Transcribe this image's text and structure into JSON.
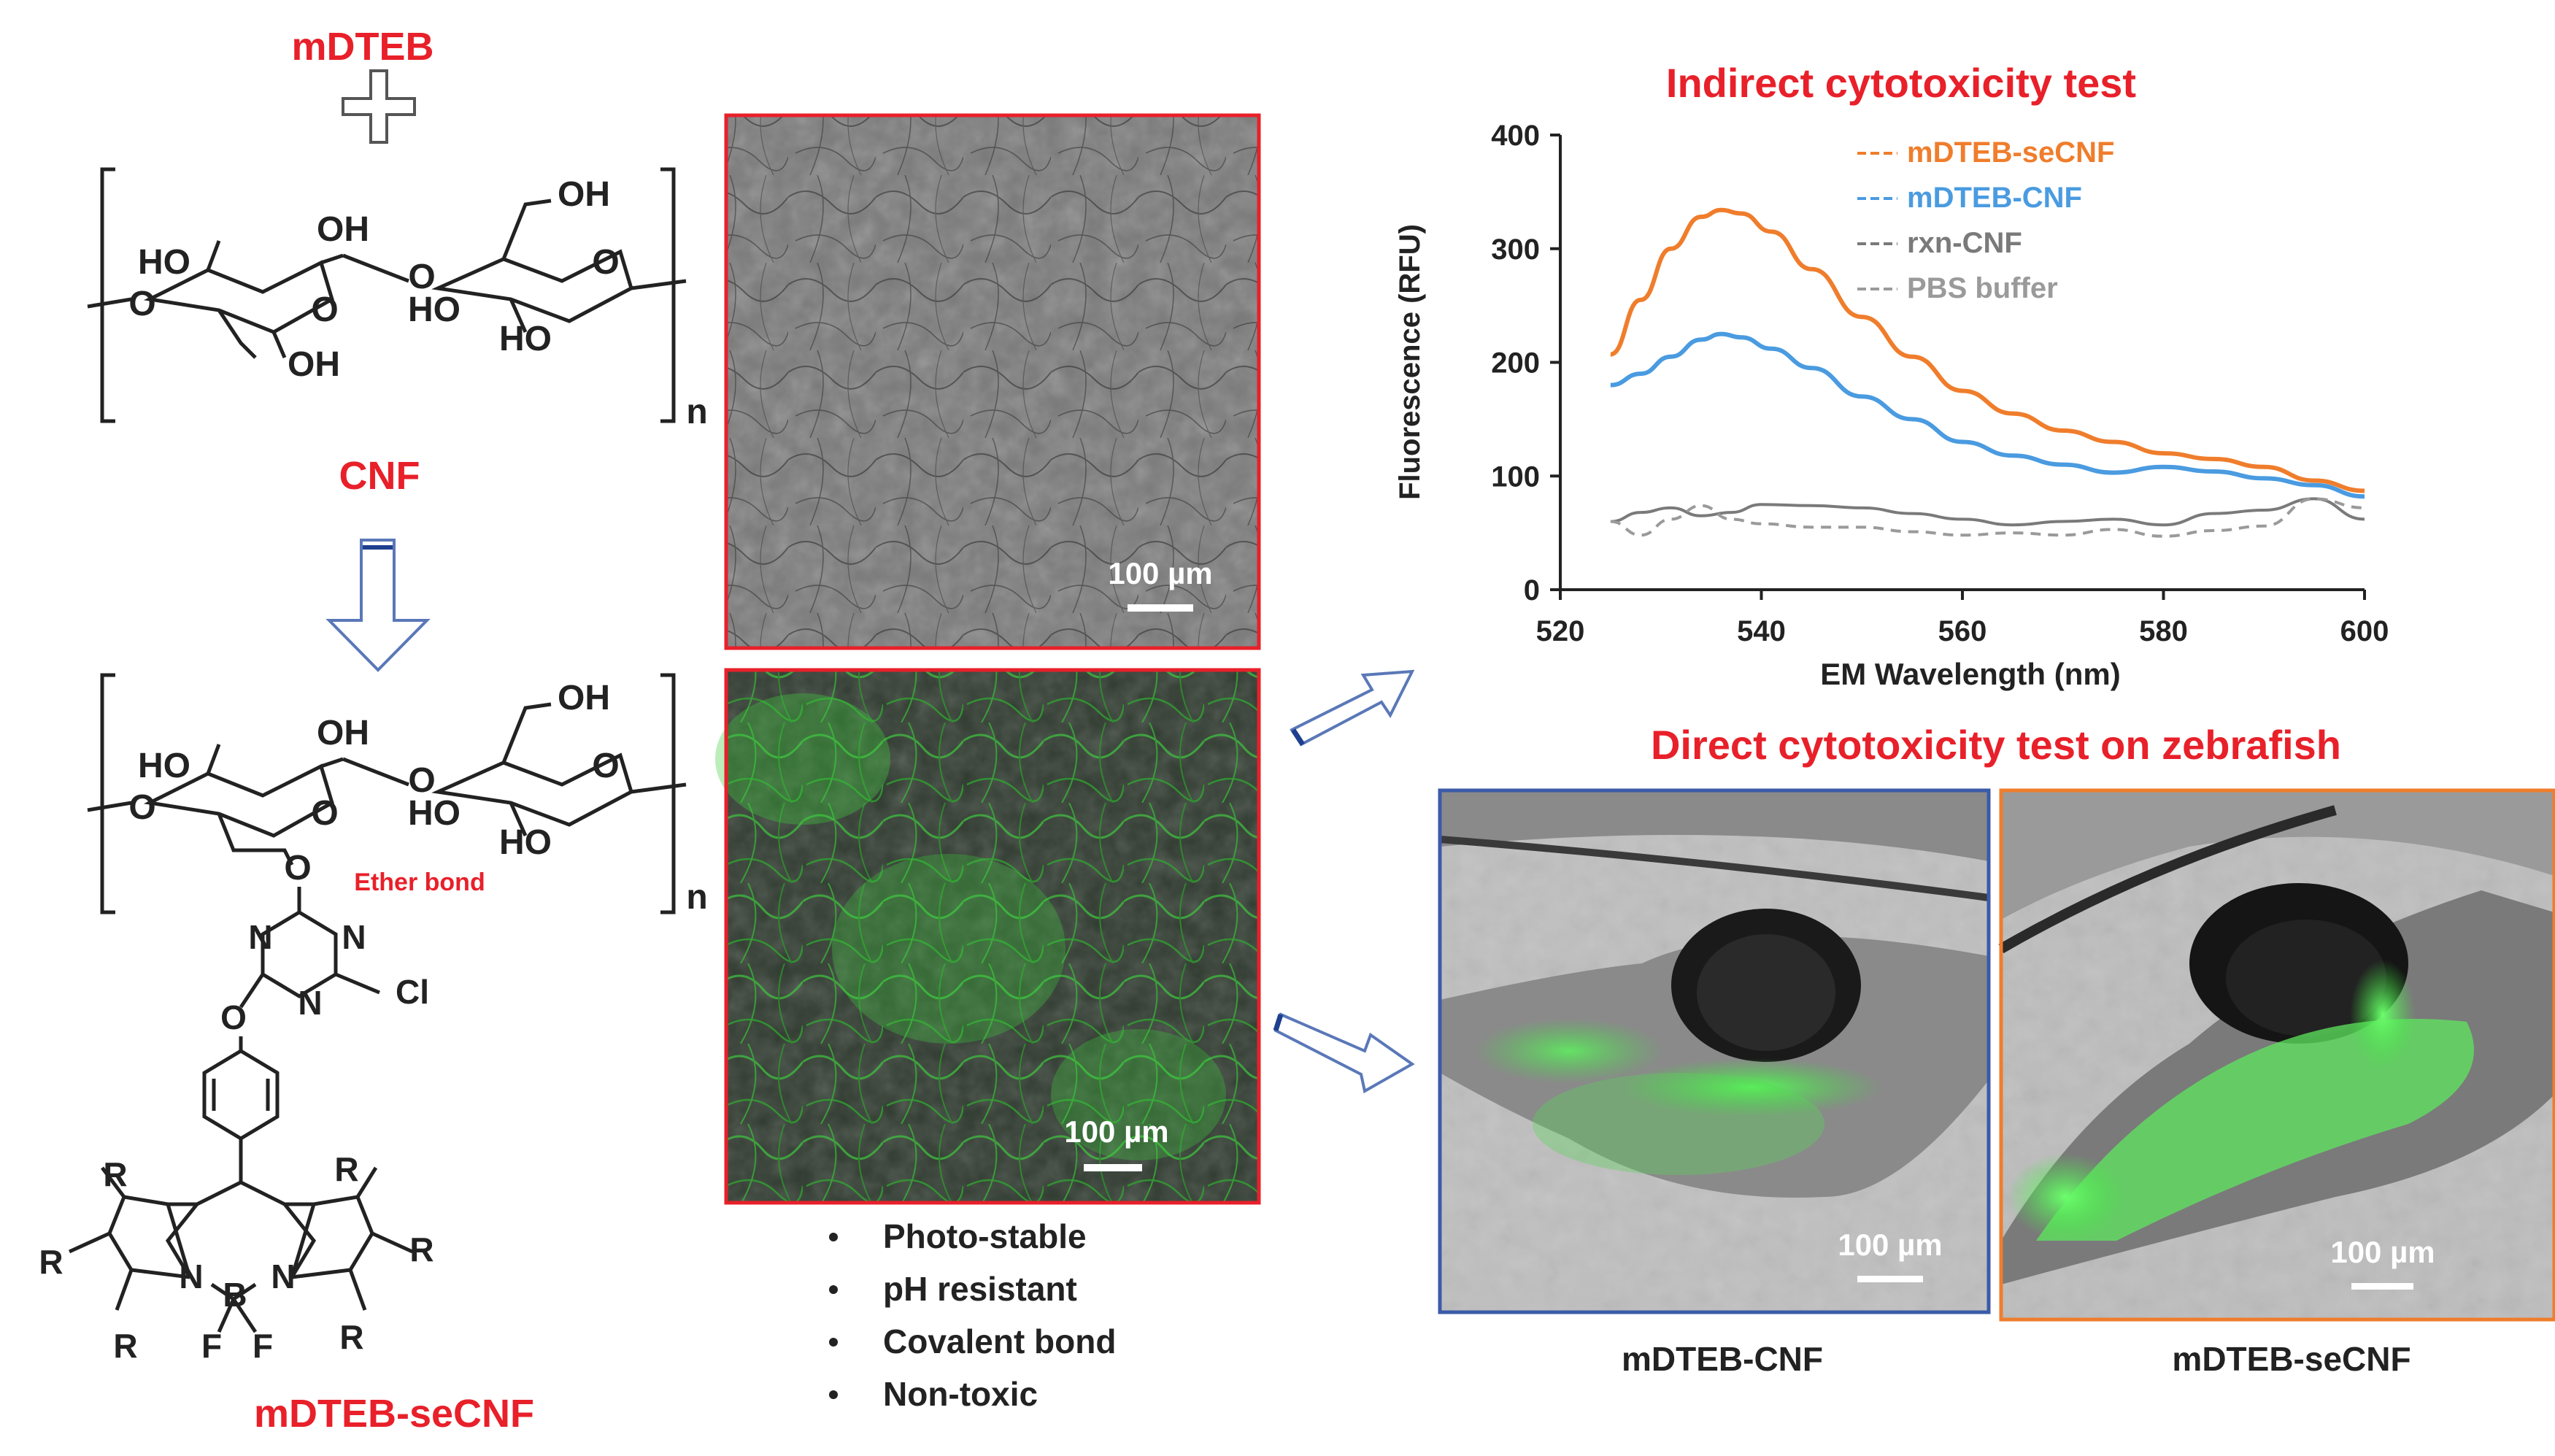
{
  "labels": {
    "mdteb": "mDTEB",
    "cnf": "CNF",
    "mdteb_secnf": "mDTEB-seCNF",
    "ether_bond": "Ether bond"
  },
  "chem": {
    "oh": "OH",
    "ho": "HO",
    "o": "O",
    "n": "N",
    "cl": "Cl",
    "b": "B",
    "f": "F",
    "r": "R",
    "repeat_n": "n"
  },
  "micrographs": {
    "scale_top": "100 µm",
    "scale_bottom": "100 µm"
  },
  "bullets": [
    "Photo-stable",
    "pH resistant",
    "Covalent bond",
    "Non-toxic"
  ],
  "indirect_title": "Indirect cytotoxicity test",
  "direct_title": "Direct cytotoxicity test on zebrafish",
  "zebrafish": {
    "left_caption": "mDTEB-CNF",
    "right_caption": "mDTEB-seCNF",
    "left_scale": "100 µm",
    "right_scale": "100 µm"
  },
  "colors": {
    "title_red": "#e8202a",
    "orange": "#ef7d2c",
    "blue": "#4a9be0",
    "gray": "#7a7a7a",
    "frame_blue": "#3b5ba8",
    "frame_orange": "#ef7d2c"
  },
  "chart_data": {
    "type": "line",
    "title": "Indirect cytotoxicity test",
    "xlabel": "EM Wavelength (nm)",
    "ylabel": "Fluorescence (RFU)",
    "xlim": [
      520,
      600
    ],
    "ylim": [
      0,
      400
    ],
    "xticks": [
      520,
      540,
      560,
      580,
      600
    ],
    "yticks": [
      0,
      100,
      200,
      300,
      400
    ],
    "grid": false,
    "legend_position": "top-right",
    "series": [
      {
        "name": "mDTEB-seCNF",
        "color": "#ef7d2c",
        "dash": false,
        "x": [
          525,
          528,
          531,
          534,
          536,
          538,
          541,
          545,
          550,
          555,
          560,
          565,
          570,
          575,
          580,
          585,
          590,
          595,
          600
        ],
        "y": [
          207,
          255,
          300,
          328,
          334,
          331,
          315,
          282,
          240,
          205,
          175,
          155,
          140,
          130,
          120,
          115,
          108,
          96,
          87
        ]
      },
      {
        "name": "mDTEB-CNF",
        "color": "#4a9be0",
        "dash": false,
        "x": [
          525,
          528,
          531,
          534,
          536,
          538,
          541,
          545,
          550,
          555,
          560,
          565,
          570,
          575,
          580,
          585,
          590,
          595,
          600
        ],
        "y": [
          180,
          190,
          205,
          220,
          225,
          222,
          212,
          195,
          170,
          150,
          130,
          118,
          110,
          103,
          108,
          104,
          98,
          92,
          82
        ]
      },
      {
        "name": "rxn-CNF",
        "color": "#7a7a7a",
        "dash": false,
        "x": [
          525,
          528,
          531,
          534,
          537,
          540,
          545,
          550,
          555,
          560,
          565,
          570,
          575,
          580,
          585,
          590,
          595,
          600
        ],
        "y": [
          60,
          68,
          72,
          65,
          68,
          75,
          74,
          72,
          67,
          62,
          57,
          60,
          62,
          57,
          67,
          70,
          80,
          62
        ]
      },
      {
        "name": "PBS buffer",
        "color": "#9a9a9a",
        "dash": true,
        "x": [
          525,
          528,
          531,
          534,
          537,
          540,
          545,
          550,
          555,
          560,
          565,
          570,
          575,
          580,
          585,
          590,
          595,
          600
        ],
        "y": [
          60,
          48,
          62,
          74,
          62,
          58,
          55,
          55,
          51,
          48,
          50,
          48,
          53,
          47,
          52,
          56,
          80,
          72
        ]
      }
    ]
  }
}
